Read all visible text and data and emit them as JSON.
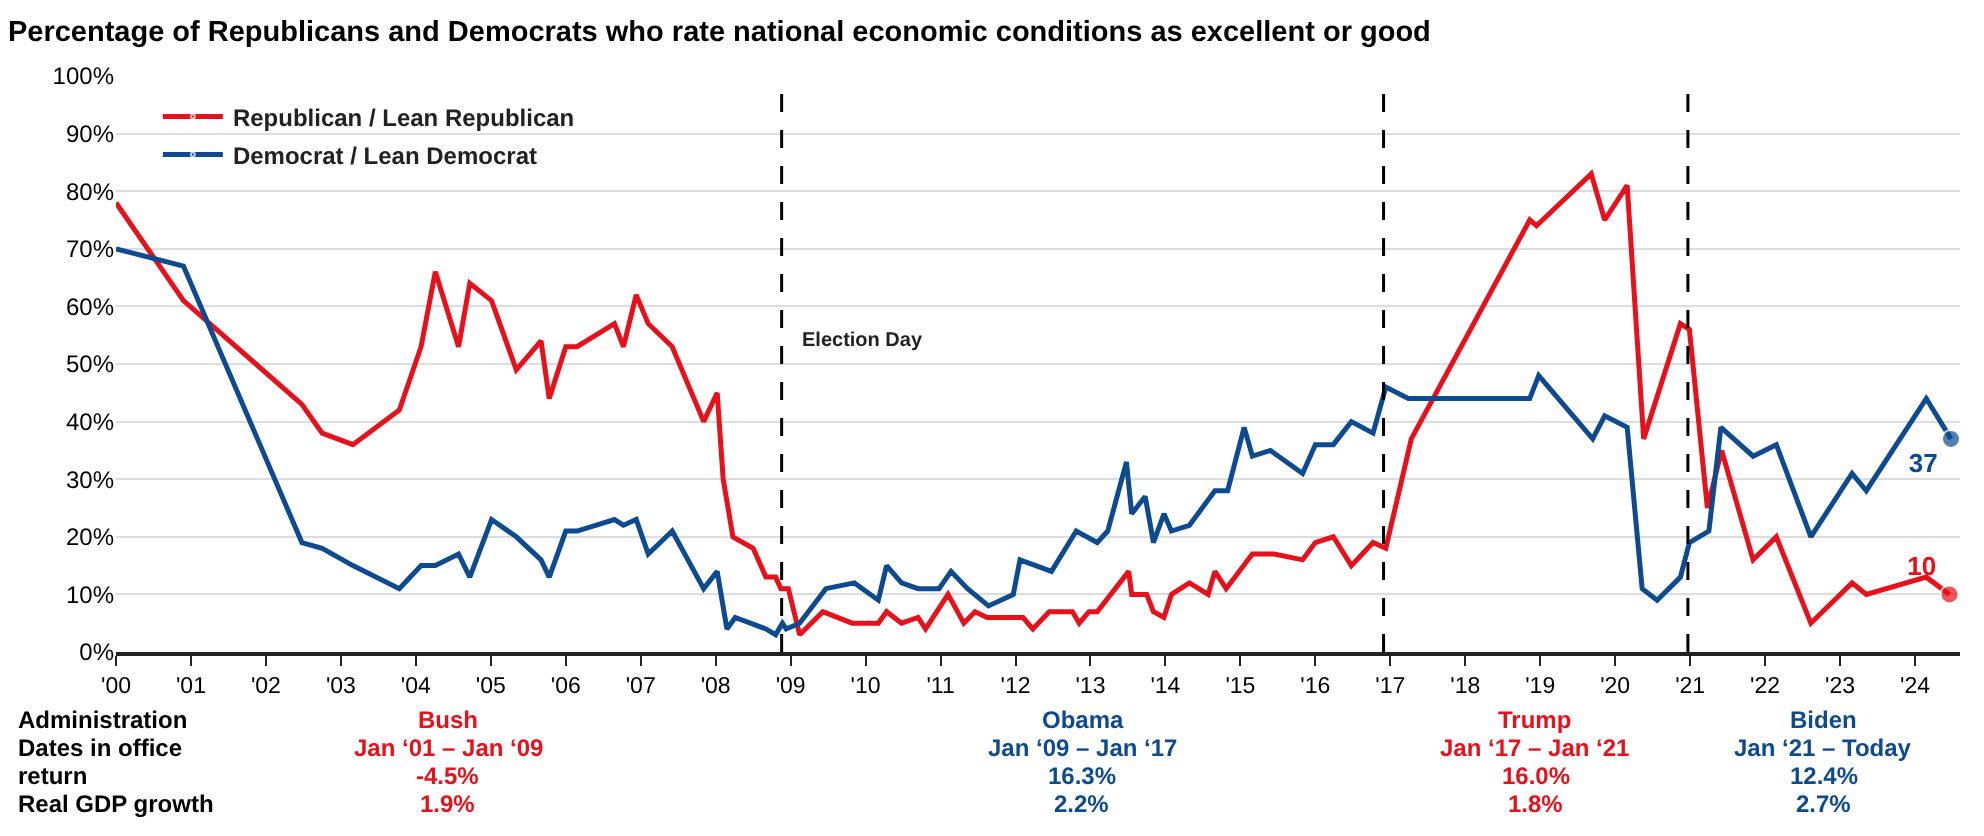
{
  "chart_data": {
    "type": "line",
    "title": "Percentage of Republicans and Democrats who rate national economic conditions as excellent or good",
    "xlim": [
      2000,
      2024.6
    ],
    "xticks": [
      {
        "value": 2000,
        "label": "'00"
      },
      {
        "value": 2001,
        "label": "'01"
      },
      {
        "value": 2002,
        "label": "'02"
      },
      {
        "value": 2003,
        "label": "'03"
      },
      {
        "value": 2004,
        "label": "'04"
      },
      {
        "value": 2005,
        "label": "'05"
      },
      {
        "value": 2006,
        "label": "'06"
      },
      {
        "value": 2007,
        "label": "'07"
      },
      {
        "value": 2008,
        "label": "'08"
      },
      {
        "value": 2009,
        "label": "'09"
      },
      {
        "value": 2010,
        "label": "'10"
      },
      {
        "value": 2011,
        "label": "'11"
      },
      {
        "value": 2012,
        "label": "'12"
      },
      {
        "value": 2013,
        "label": "'13"
      },
      {
        "value": 2014,
        "label": "'14"
      },
      {
        "value": 2015,
        "label": "'15"
      },
      {
        "value": 2016,
        "label": "'16"
      },
      {
        "value": 2017,
        "label": "'17"
      },
      {
        "value": 2018,
        "label": "'18"
      },
      {
        "value": 2019,
        "label": "'19"
      },
      {
        "value": 2020,
        "label": "'20"
      },
      {
        "value": 2021,
        "label": "'21"
      },
      {
        "value": 2022,
        "label": "'22"
      },
      {
        "value": 2023,
        "label": "'23"
      },
      {
        "value": 2024,
        "label": "'24"
      }
    ],
    "ylim": [
      0,
      100
    ],
    "yticks": [
      {
        "value": 0,
        "label": "0%"
      },
      {
        "value": 10,
        "label": "10%"
      },
      {
        "value": 20,
        "label": "20%"
      },
      {
        "value": 30,
        "label": "30%"
      },
      {
        "value": 40,
        "label": "40%"
      },
      {
        "value": 50,
        "label": "50%"
      },
      {
        "value": 60,
        "label": "60%"
      },
      {
        "value": 70,
        "label": "70%"
      },
      {
        "value": 80,
        "label": "80%"
      },
      {
        "value": 90,
        "label": "90%"
      },
      {
        "value": 100,
        "label": "100%"
      }
    ],
    "grid": "y",
    "legend": "top left",
    "line_style": "solid",
    "series": [
      {
        "name": "Republican / Lean Republican",
        "color": "#e8101a",
        "x": [
          2000,
          2000.9,
          2002.48,
          2002.75,
          2003.16,
          2003.78,
          2004.07,
          2004.26,
          2004.57,
          2004.72,
          2005.01,
          2005.34,
          2005.67,
          2005.78,
          2006,
          2006.15,
          2006.65,
          2006.77,
          2006.94,
          2007.1,
          2007.42,
          2007.84,
          2008.02,
          2008.1,
          2008.23,
          2008.5,
          2008.67,
          2008.8,
          2008.87,
          2008.97,
          2009.12,
          2009.43,
          2009.82,
          2010.17,
          2010.28,
          2010.48,
          2010.7,
          2010.8,
          2011.1,
          2011.31,
          2011.46,
          2011.62,
          2012.1,
          2012.23,
          2012.45,
          2012.76,
          2012.85,
          2012.98,
          2013.09,
          2013.51,
          2013.55,
          2013.75,
          2013.84,
          2013.98,
          2014.08,
          2014.32,
          2014.57,
          2014.66,
          2014.81,
          2015.16,
          2015.45,
          2015.83,
          2016,
          2016.24,
          2016.48,
          2016.77,
          2016.94,
          2017.28,
          2018.86,
          2018.95,
          2019.68,
          2019.86,
          2020.16,
          2020.38,
          2020.87,
          2020.99,
          2021.23,
          2021.42,
          2021.84,
          2022.15,
          2022.61,
          2023.16,
          2023.35,
          2024.15,
          2024.46
        ],
        "values": [
          78,
          61,
          43,
          38,
          36,
          42,
          53,
          66,
          53,
          64,
          61,
          49,
          54,
          44,
          53,
          53,
          57,
          53,
          62,
          57,
          53,
          40,
          45,
          30,
          20,
          18,
          13,
          13,
          11,
          11,
          3,
          7,
          5,
          5,
          7,
          5,
          6,
          4,
          10,
          5,
          7,
          6,
          6,
          4,
          7,
          7,
          5,
          7,
          7,
          14,
          10,
          10,
          7,
          6,
          10,
          12,
          10,
          14,
          11,
          17,
          17,
          16,
          19,
          20,
          15,
          19,
          18,
          37,
          75,
          74,
          83,
          75,
          81,
          37,
          57,
          56,
          25,
          35,
          16,
          20,
          5,
          12,
          10,
          13,
          10
        ],
        "value_labels": [
          null,
          null,
          null,
          null,
          null,
          null,
          null,
          null,
          null,
          null,
          null,
          null,
          null,
          null,
          null,
          null,
          null,
          null,
          null,
          null,
          null,
          null,
          null,
          null,
          null,
          null,
          null,
          null,
          null,
          null,
          null,
          null,
          null,
          null,
          null,
          null,
          null,
          null,
          null,
          null,
          null,
          null,
          null,
          null,
          null,
          null,
          null,
          null,
          null,
          null,
          null,
          null,
          null,
          null,
          null,
          null,
          null,
          null,
          null,
          null,
          null,
          null,
          null,
          null,
          null,
          null,
          null,
          null,
          null,
          null,
          null,
          null,
          null,
          null,
          null,
          null,
          null,
          null,
          null,
          null,
          null,
          null,
          null,
          null,
          "10"
        ]
      },
      {
        "name": "Democrat / Lean Democrat",
        "color": "#0d4a8f",
        "x": [
          2000,
          2000.9,
          2002.48,
          2002.75,
          2003.16,
          2003.78,
          2004.07,
          2004.26,
          2004.57,
          2004.72,
          2005.01,
          2005.34,
          2005.67,
          2005.78,
          2006,
          2006.15,
          2006.65,
          2006.77,
          2006.94,
          2007.1,
          2007.42,
          2007.84,
          2008.02,
          2008.15,
          2008.26,
          2008.67,
          2008.8,
          2008.89,
          2008.94,
          2009.12,
          2009.47,
          2009.85,
          2010.17,
          2010.28,
          2010.48,
          2010.7,
          2010.98,
          2011.14,
          2011.36,
          2011.64,
          2011.97,
          2012.06,
          2012.48,
          2012.81,
          2013.09,
          2013.23,
          2013.48,
          2013.55,
          2013.73,
          2013.84,
          2013.98,
          2014.08,
          2014.32,
          2014.66,
          2014.83,
          2015.05,
          2015.16,
          2015.4,
          2015.83,
          2016,
          2016.24,
          2016.48,
          2016.77,
          2016.94,
          2017.24,
          2018.86,
          2018.98,
          2019.7,
          2019.86,
          2020.16,
          2020.36,
          2020.56,
          2020.87,
          2020.99,
          2021.25,
          2021.41,
          2021.84,
          2022.15,
          2022.61,
          2023.16,
          2023.35,
          2024.15,
          2024.48
        ],
        "values": [
          70,
          67,
          19,
          18,
          15,
          11,
          15,
          15,
          17,
          13,
          23,
          20,
          16,
          13,
          21,
          21,
          23,
          22,
          23,
          17,
          21,
          11,
          14,
          4,
          6,
          4,
          3,
          5,
          4,
          5,
          11,
          12,
          9,
          15,
          12,
          11,
          11,
          14,
          11,
          8,
          10,
          16,
          14,
          21,
          19,
          21,
          33,
          24,
          27,
          19,
          24,
          21,
          22,
          28,
          28,
          39,
          34,
          35,
          31,
          36,
          36,
          40,
          38,
          46,
          44,
          44,
          48,
          37,
          41,
          39,
          11,
          9,
          13,
          19,
          21,
          39,
          34,
          36,
          20,
          31,
          28,
          44,
          37
        ],
        "value_labels": [
          null,
          null,
          null,
          null,
          null,
          null,
          null,
          null,
          null,
          null,
          null,
          null,
          null,
          null,
          null,
          null,
          null,
          null,
          null,
          null,
          null,
          null,
          null,
          null,
          null,
          null,
          null,
          null,
          null,
          null,
          null,
          null,
          null,
          null,
          null,
          null,
          null,
          null,
          null,
          null,
          null,
          null,
          null,
          null,
          null,
          null,
          null,
          null,
          null,
          null,
          null,
          null,
          null,
          null,
          null,
          null,
          null,
          null,
          null,
          null,
          null,
          null,
          null,
          null,
          null,
          null,
          null,
          null,
          null,
          null,
          null,
          null,
          null,
          null,
          null,
          null,
          null,
          null,
          null,
          null,
          null,
          null,
          "37"
        ]
      }
    ],
    "ref_lines": [
      {
        "axis": "x",
        "value": 2008.88,
        "label": null,
        "line_style": "dashed",
        "color": "#000000"
      },
      {
        "axis": "x",
        "value": 2016.91,
        "label": null,
        "line_style": "dashed",
        "color": "#000000"
      },
      {
        "axis": "x",
        "value": 2020.97,
        "label": null,
        "line_style": "dashed",
        "color": "#000000"
      }
    ],
    "annotations": [
      {
        "text": "Election Day",
        "x": 2008.88,
        "y": 54
      },
      "Administration",
      "Bush",
      "Obama",
      "Trump",
      "Biden",
      "Dates in office",
      "Jan ‘01 – Jan ‘09",
      "Jan ‘09 – Jan ‘17",
      "Jan ‘17 – Jan ‘21",
      "Jan ‘21 – Today",
      "return",
      "-4.5%",
      "16.3%",
      "16.0%",
      "12.4%",
      "Real GDP growth",
      "1.9%",
      "2.2%",
      "1.8%",
      "2.7%"
    ]
  }
}
